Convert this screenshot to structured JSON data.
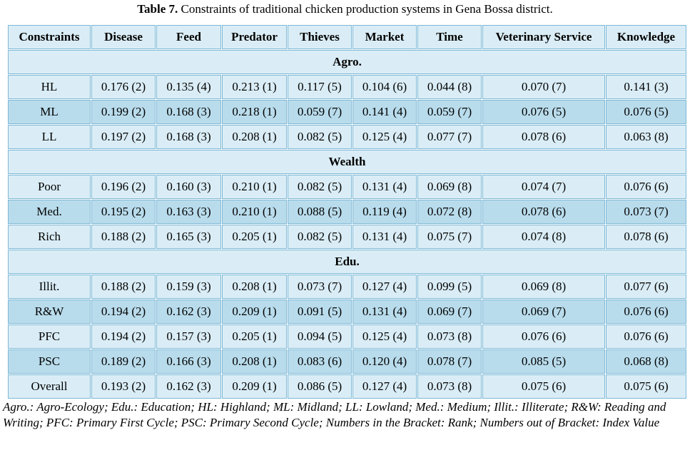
{
  "caption": {
    "label": "Table 7.",
    "text": " Constraints of traditional chicken production systems in Gena Bossa district."
  },
  "headers": [
    "Constraints",
    "Disease",
    "Feed",
    "Predator",
    "Thieves",
    "Market",
    "Time",
    "Veterinary Service",
    "Knowledge"
  ],
  "sections": [
    {
      "title": "Agro.",
      "rows": [
        {
          "label": "HL",
          "cells": [
            "0.176 (2)",
            "0.135 (4)",
            "0.213 (1)",
            "0.117 (5)",
            "0.104 (6)",
            "0.044 (8)",
            "0.070 (7)",
            "0.141 (3)"
          ]
        },
        {
          "label": "ML",
          "cells": [
            "0.199 (2)",
            "0.168 (3)",
            "0.218 (1)",
            "0.059 (7)",
            "0.141 (4)",
            "0.059 (7)",
            "0.076 (5)",
            "0.076 (5)"
          ]
        },
        {
          "label": "LL",
          "cells": [
            "0.197 (2)",
            "0.168 (3)",
            "0.208 (1)",
            "0.082 (5)",
            "0.125 (4)",
            "0.077 (7)",
            "0.078 (6)",
            "0.063 (8)"
          ]
        }
      ]
    },
    {
      "title": "Wealth",
      "rows": [
        {
          "label": "Poor",
          "cells": [
            "0.196 (2)",
            "0.160 (3)",
            "0.210 (1)",
            "0.082 (5)",
            "0.131 (4)",
            "0.069 (8)",
            "0.074 (7)",
            "0.076 (6)"
          ]
        },
        {
          "label": "Med.",
          "cells": [
            "0.195 (2)",
            "0.163 (3)",
            "0.210 (1)",
            "0.088 (5)",
            "0.119 (4)",
            "0.072 (8)",
            "0.078 (6)",
            "0.073 (7)"
          ]
        },
        {
          "label": "Rich",
          "cells": [
            "0.188 (2)",
            "0.165 (3)",
            "0.205 (1)",
            "0.082 (5)",
            "0.131 (4)",
            "0.075 (7)",
            "0.074 (8)",
            "0.078 (6)"
          ]
        }
      ]
    },
    {
      "title": "Edu.",
      "rows": [
        {
          "label": "Illit.",
          "cells": [
            "0.188 (2)",
            "0.159 (3)",
            "0.208 (1)",
            "0.073 (7)",
            "0.127 (4)",
            "0.099 (5)",
            "0.069 (8)",
            "0.077 (6)"
          ]
        },
        {
          "label": "R&W",
          "cells": [
            "0.194 (2)",
            "0.162 (3)",
            "0.209 (1)",
            "0.091 (5)",
            "0.131 (4)",
            "0.069 (7)",
            "0.069 (7)",
            "0.076 (6)"
          ]
        },
        {
          "label": "PFC",
          "cells": [
            "0.194 (2)",
            "0.157 (3)",
            "0.205 (1)",
            "0.094 (5)",
            "0.125 (4)",
            "0.073 (8)",
            "0.076 (6)",
            "0.076 (6)"
          ]
        },
        {
          "label": "PSC",
          "cells": [
            "0.189 (2)",
            "0.166 (3)",
            "0.208 (1)",
            "0.083 (6)",
            "0.120 (4)",
            "0.078 (7)",
            "0.085 (5)",
            "0.068 (8)"
          ]
        },
        {
          "label": "Overall",
          "cells": [
            "0.193 (2)",
            "0.162 (3)",
            "0.209 (1)",
            "0.086 (5)",
            "0.127 (4)",
            "0.073 (8)",
            "0.075 (6)",
            "0.075 (6)"
          ]
        }
      ]
    }
  ],
  "footnote": "Agro.: Agro-Ecology; Edu.: Education; HL: Highland; ML: Midland; LL: Lowland; Med.: Medium; Illit.: Illiterate; R&W: Reading and Writing; PFC: Primary First Cycle; PSC: Primary Second Cycle; Numbers in the Bracket: Rank; Numbers out of Bracket: Index Value"
}
